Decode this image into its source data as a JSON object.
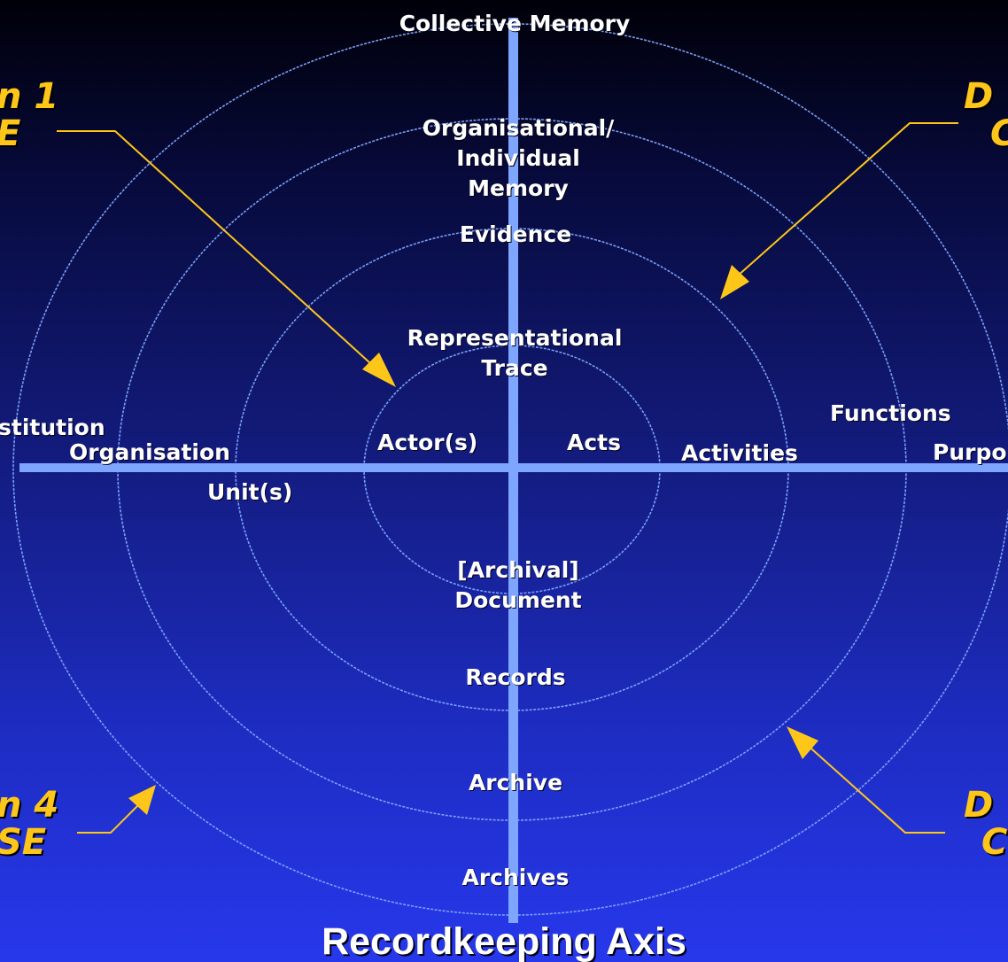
{
  "colors": {
    "ring": "#7fa6ff",
    "axis": "#7ea6ff",
    "label_text": "#ffffff",
    "dimension_text": "#ffc61a",
    "background_top": "#000008",
    "background_bottom": "#2738ec"
  },
  "vertical_axis": {
    "top_label": "Collective Memory",
    "title": "Recordkeeping Axis",
    "labels": {
      "org_memory": [
        "Organisational/",
        "Individual",
        "Memory"
      ],
      "evidence": "Evidence",
      "trace": [
        "Representational",
        "Trace"
      ],
      "document": [
        "[Archival]",
        "Document"
      ],
      "records": "Records",
      "archive": "Archive",
      "archives": "Archives"
    }
  },
  "horizontal_axis": {
    "institution": "stitution",
    "organisation": "Organisation",
    "units": "Unit(s)",
    "actors": "Actor(s)",
    "acts": "Acts",
    "activities": "Activities",
    "functions": "Functions",
    "purpose": "Purpo"
  },
  "dimensions": {
    "top_left": [
      "n 1",
      "E"
    ],
    "top_right": [
      "D",
      "C"
    ],
    "bottom_left": [
      "n 4",
      "SE"
    ],
    "bottom_right": [
      "D",
      "C"
    ]
  }
}
